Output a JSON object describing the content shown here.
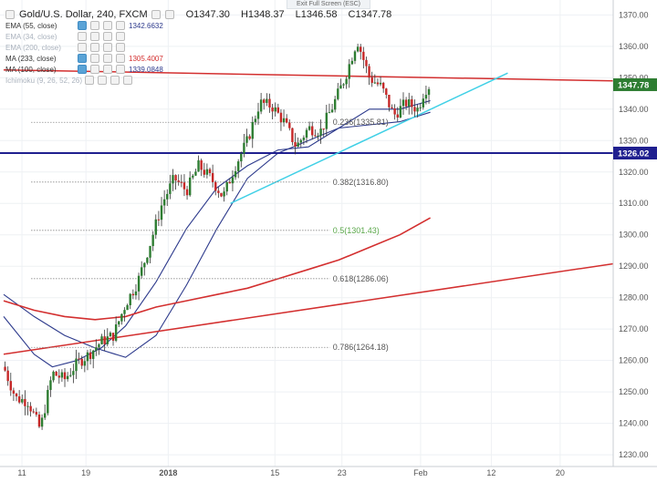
{
  "screen": {
    "exit_fullscreen": "Exit Full Screen (ESC)"
  },
  "legend": {
    "symbol": "Gold/U.S. Dollar, 240, FXCM",
    "ohlc": {
      "open": "O1347.30",
      "high": "H1348.37",
      "low": "L1346.58",
      "close": "C1347.78"
    },
    "indicators": [
      {
        "name": "EMA (55, close)",
        "value": "1342.6632",
        "color": "#2d3a8c",
        "muted": false
      },
      {
        "name": "EMA (34, close)",
        "value": "",
        "color": "#aab2bd",
        "muted": true
      },
      {
        "name": "EMA (200, close)",
        "value": "",
        "color": "#aab2bd",
        "muted": true
      },
      {
        "name": "MA (233, close)",
        "value": "1305.4007",
        "color": "#d32f2f",
        "muted": false
      },
      {
        "name": "MA (100, close)",
        "value": "1339.0848",
        "color": "#2d3a8c",
        "muted": false
      },
      {
        "name": "Ichimoku (9, 26, 52, 26)",
        "value": "",
        "color": "#aab2bd",
        "muted": true
      }
    ]
  },
  "chart_data": {
    "type": "candlestick",
    "symbol": "XAUUSD",
    "timeframe": "240",
    "x_ticks": [
      "11",
      "19",
      "2018",
      "15",
      "23",
      "Feb",
      "12",
      "20"
    ],
    "y_ticks": [
      1230,
      1240,
      1250,
      1260,
      1270,
      1280,
      1290,
      1300,
      1310,
      1320,
      1330,
      1340,
      1350,
      1360,
      1370
    ],
    "y_range": [
      1228,
      1373
    ],
    "price_labels": [
      {
        "value": 1347.78,
        "text": "1347.78",
        "color": "#2e7d32"
      },
      {
        "value": 1326.02,
        "text": "1326.02",
        "color": "#1f1f8f"
      }
    ],
    "fibonacci": [
      {
        "ratio": "0.236",
        "price": 1335.81,
        "label": "0.236(1335.81)",
        "color": "#555555"
      },
      {
        "ratio": "0.382",
        "price": 1316.8,
        "label": "0.382(1316.80)",
        "color": "#555555"
      },
      {
        "ratio": "0.5",
        "price": 1301.43,
        "label": "0.5(1301.43)",
        "color": "#5aa74a"
      },
      {
        "ratio": "0.618",
        "price": 1286.06,
        "label": "0.618(1286.06)",
        "color": "#555555"
      },
      {
        "ratio": "0.786",
        "price": 1264.18,
        "label": "0.786(1264.18)",
        "color": "#555555"
      }
    ],
    "horizontal_lines": [
      {
        "price": 1326.02,
        "color": "#1f1f8f"
      }
    ],
    "trend_lines": [
      {
        "name": "resistance",
        "from": [
          0,
          1352.5
        ],
        "to": [
          1,
          1349.0
        ],
        "color": "#d32f2f"
      },
      {
        "name": "long-support",
        "from": [
          0,
          1262.0
        ],
        "to": [
          1,
          1290.8
        ],
        "color": "#d32f2f"
      },
      {
        "name": "short-support",
        "from": [
          0.372,
          1310.0
        ],
        "to": [
          0.827,
          1351.5
        ],
        "color": "#40d0e6"
      }
    ],
    "close_path": [
      [
        0.0,
        1258
      ],
      [
        0.02,
        1248
      ],
      [
        0.04,
        1247
      ],
      [
        0.06,
        1238
      ],
      [
        0.08,
        1256
      ],
      [
        0.1,
        1254
      ],
      [
        0.12,
        1259
      ],
      [
        0.14,
        1262
      ],
      [
        0.16,
        1266
      ],
      [
        0.18,
        1268
      ],
      [
        0.2,
        1278
      ],
      [
        0.22,
        1285
      ],
      [
        0.24,
        1297
      ],
      [
        0.26,
        1310
      ],
      [
        0.28,
        1318
      ],
      [
        0.3,
        1314
      ],
      [
        0.32,
        1322
      ],
      [
        0.34,
        1318
      ],
      [
        0.36,
        1312
      ],
      [
        0.38,
        1322
      ],
      [
        0.4,
        1330
      ],
      [
        0.42,
        1342
      ],
      [
        0.44,
        1341
      ],
      [
        0.46,
        1336
      ],
      [
        0.48,
        1328
      ],
      [
        0.5,
        1334
      ],
      [
        0.52,
        1333
      ],
      [
        0.54,
        1341
      ],
      [
        0.56,
        1350
      ],
      [
        0.58,
        1362
      ],
      [
        0.6,
        1350
      ],
      [
        0.62,
        1347
      ],
      [
        0.64,
        1338
      ],
      [
        0.66,
        1342
      ],
      [
        0.68,
        1340
      ],
      [
        0.69,
        1346
      ],
      [
        0.7,
        1347.78
      ]
    ],
    "indicator_lines": [
      {
        "name": "MA (100, close)",
        "color": "#2d3a8c",
        "points": [
          [
            0.0,
            1281
          ],
          [
            0.05,
            1274
          ],
          [
            0.1,
            1268
          ],
          [
            0.15,
            1264
          ],
          [
            0.2,
            1261
          ],
          [
            0.25,
            1268
          ],
          [
            0.3,
            1284
          ],
          [
            0.35,
            1302
          ],
          [
            0.4,
            1318
          ],
          [
            0.45,
            1326
          ],
          [
            0.5,
            1330
          ],
          [
            0.55,
            1334
          ],
          [
            0.6,
            1335
          ],
          [
            0.65,
            1336
          ],
          [
            0.7,
            1339
          ]
        ]
      },
      {
        "name": "EMA (55, close)",
        "color": "#2d3a8c",
        "points": [
          [
            0.0,
            1274
          ],
          [
            0.05,
            1262
          ],
          [
            0.08,
            1258
          ],
          [
            0.12,
            1260
          ],
          [
            0.16,
            1264
          ],
          [
            0.2,
            1271
          ],
          [
            0.25,
            1285
          ],
          [
            0.3,
            1302
          ],
          [
            0.35,
            1315
          ],
          [
            0.4,
            1322
          ],
          [
            0.45,
            1327
          ],
          [
            0.5,
            1328
          ],
          [
            0.55,
            1334
          ],
          [
            0.6,
            1340
          ],
          [
            0.65,
            1340
          ],
          [
            0.7,
            1342.7
          ]
        ]
      },
      {
        "name": "MA (233, close)",
        "color": "#d32f2f",
        "points": [
          [
            0.0,
            1279
          ],
          [
            0.05,
            1276
          ],
          [
            0.1,
            1274
          ],
          [
            0.15,
            1273
          ],
          [
            0.2,
            1274
          ],
          [
            0.25,
            1277
          ],
          [
            0.3,
            1279
          ],
          [
            0.35,
            1281
          ],
          [
            0.4,
            1283
          ],
          [
            0.45,
            1286
          ],
          [
            0.5,
            1289
          ],
          [
            0.55,
            1292
          ],
          [
            0.6,
            1296
          ],
          [
            0.65,
            1300
          ],
          [
            0.7,
            1305.4
          ]
        ]
      }
    ]
  }
}
